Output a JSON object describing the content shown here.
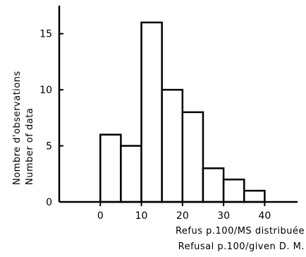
{
  "chart_data": {
    "type": "bar",
    "chart_kind": "histogram",
    "bin_width": 5,
    "bins": [
      {
        "x0": 0,
        "x1": 5,
        "count": 6
      },
      {
        "x0": 5,
        "x1": 10,
        "count": 5
      },
      {
        "x0": 10,
        "x1": 15,
        "count": 16
      },
      {
        "x0": 15,
        "x1": 20,
        "count": 10
      },
      {
        "x0": 20,
        "x1": 25,
        "count": 8
      },
      {
        "x0": 25,
        "x1": 30,
        "count": 3
      },
      {
        "x0": 30,
        "x1": 35,
        "count": 2
      },
      {
        "x0": 35,
        "x1": 40,
        "count": 1
      }
    ],
    "xlim": [
      -10,
      48
    ],
    "ylim": [
      0,
      17.5
    ],
    "x_ticks": [
      0,
      10,
      20,
      30,
      40
    ],
    "y_ticks": [
      0,
      5,
      10,
      15
    ],
    "xlabel_lines": [
      "Refus p.100/MS distribuée",
      "Refusal p.100/given D. M."
    ],
    "ylabel_lines": [
      "Nombre d'observations",
      "Number of data"
    ],
    "grid": false,
    "legend": "none"
  }
}
